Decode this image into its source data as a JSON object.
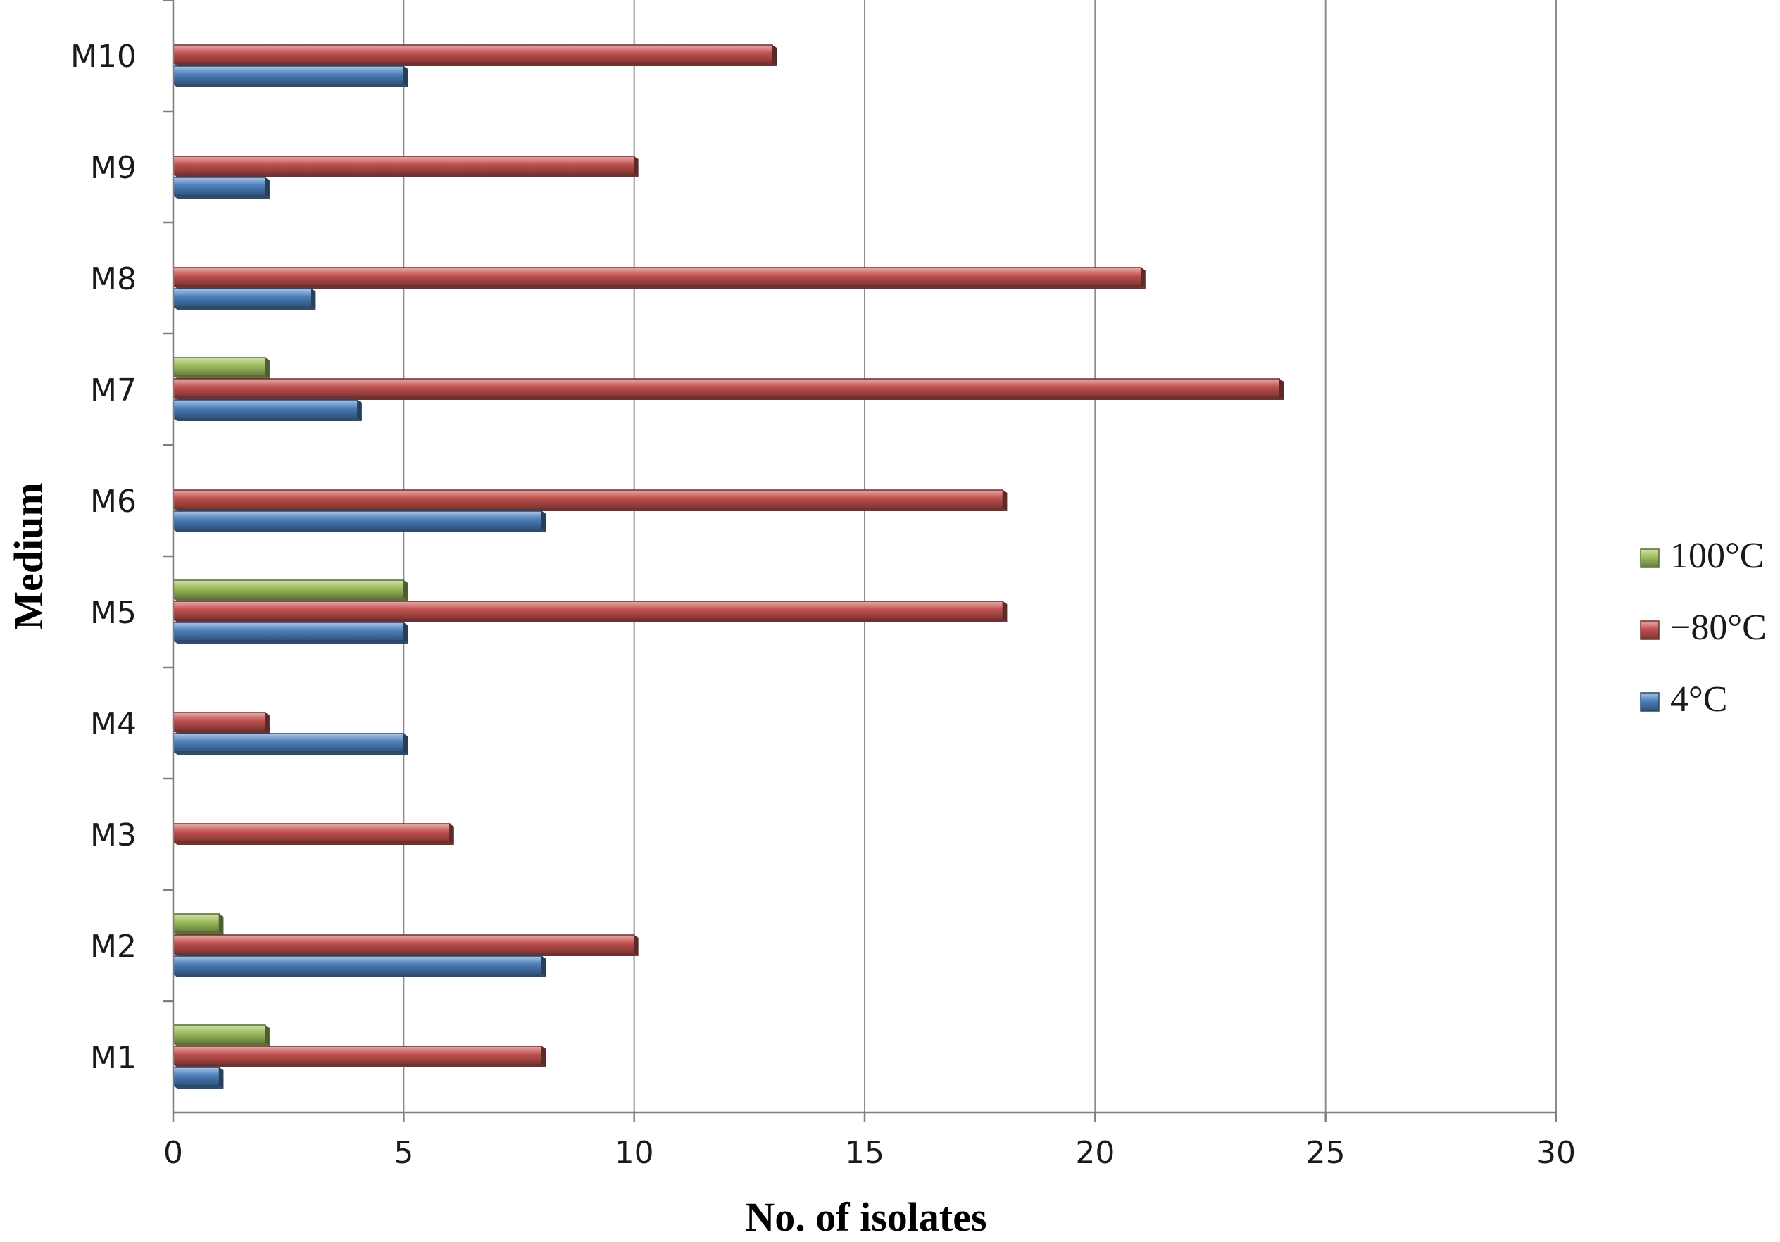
{
  "chart_data": {
    "type": "bar",
    "orientation": "horizontal",
    "title": "",
    "xlabel": "No. of isolates",
    "ylabel": "Medium",
    "xlim": [
      0,
      30
    ],
    "xticks": [
      0,
      5,
      10,
      15,
      20,
      25,
      30
    ],
    "grid": "vertical",
    "legend_position": "right",
    "categories": [
      "M1",
      "M2",
      "M3",
      "M4",
      "M5",
      "M6",
      "M7",
      "M8",
      "M9",
      "M10"
    ],
    "series": [
      {
        "name": "4°C",
        "color": "#4a7ebb",
        "values": [
          1,
          8,
          0,
          5,
          5,
          8,
          4,
          3,
          2,
          5
        ]
      },
      {
        "name": "−80°C",
        "color": "#c0504d",
        "values": [
          8,
          10,
          6,
          2,
          18,
          18,
          24,
          21,
          10,
          13
        ]
      },
      {
        "name": "100°C",
        "color": "#9bbb59",
        "values": [
          2,
          1,
          0,
          0,
          5,
          0,
          2,
          0,
          0,
          0
        ]
      }
    ],
    "legend_order": [
      "100°C",
      "−80°C",
      "4°C"
    ]
  }
}
